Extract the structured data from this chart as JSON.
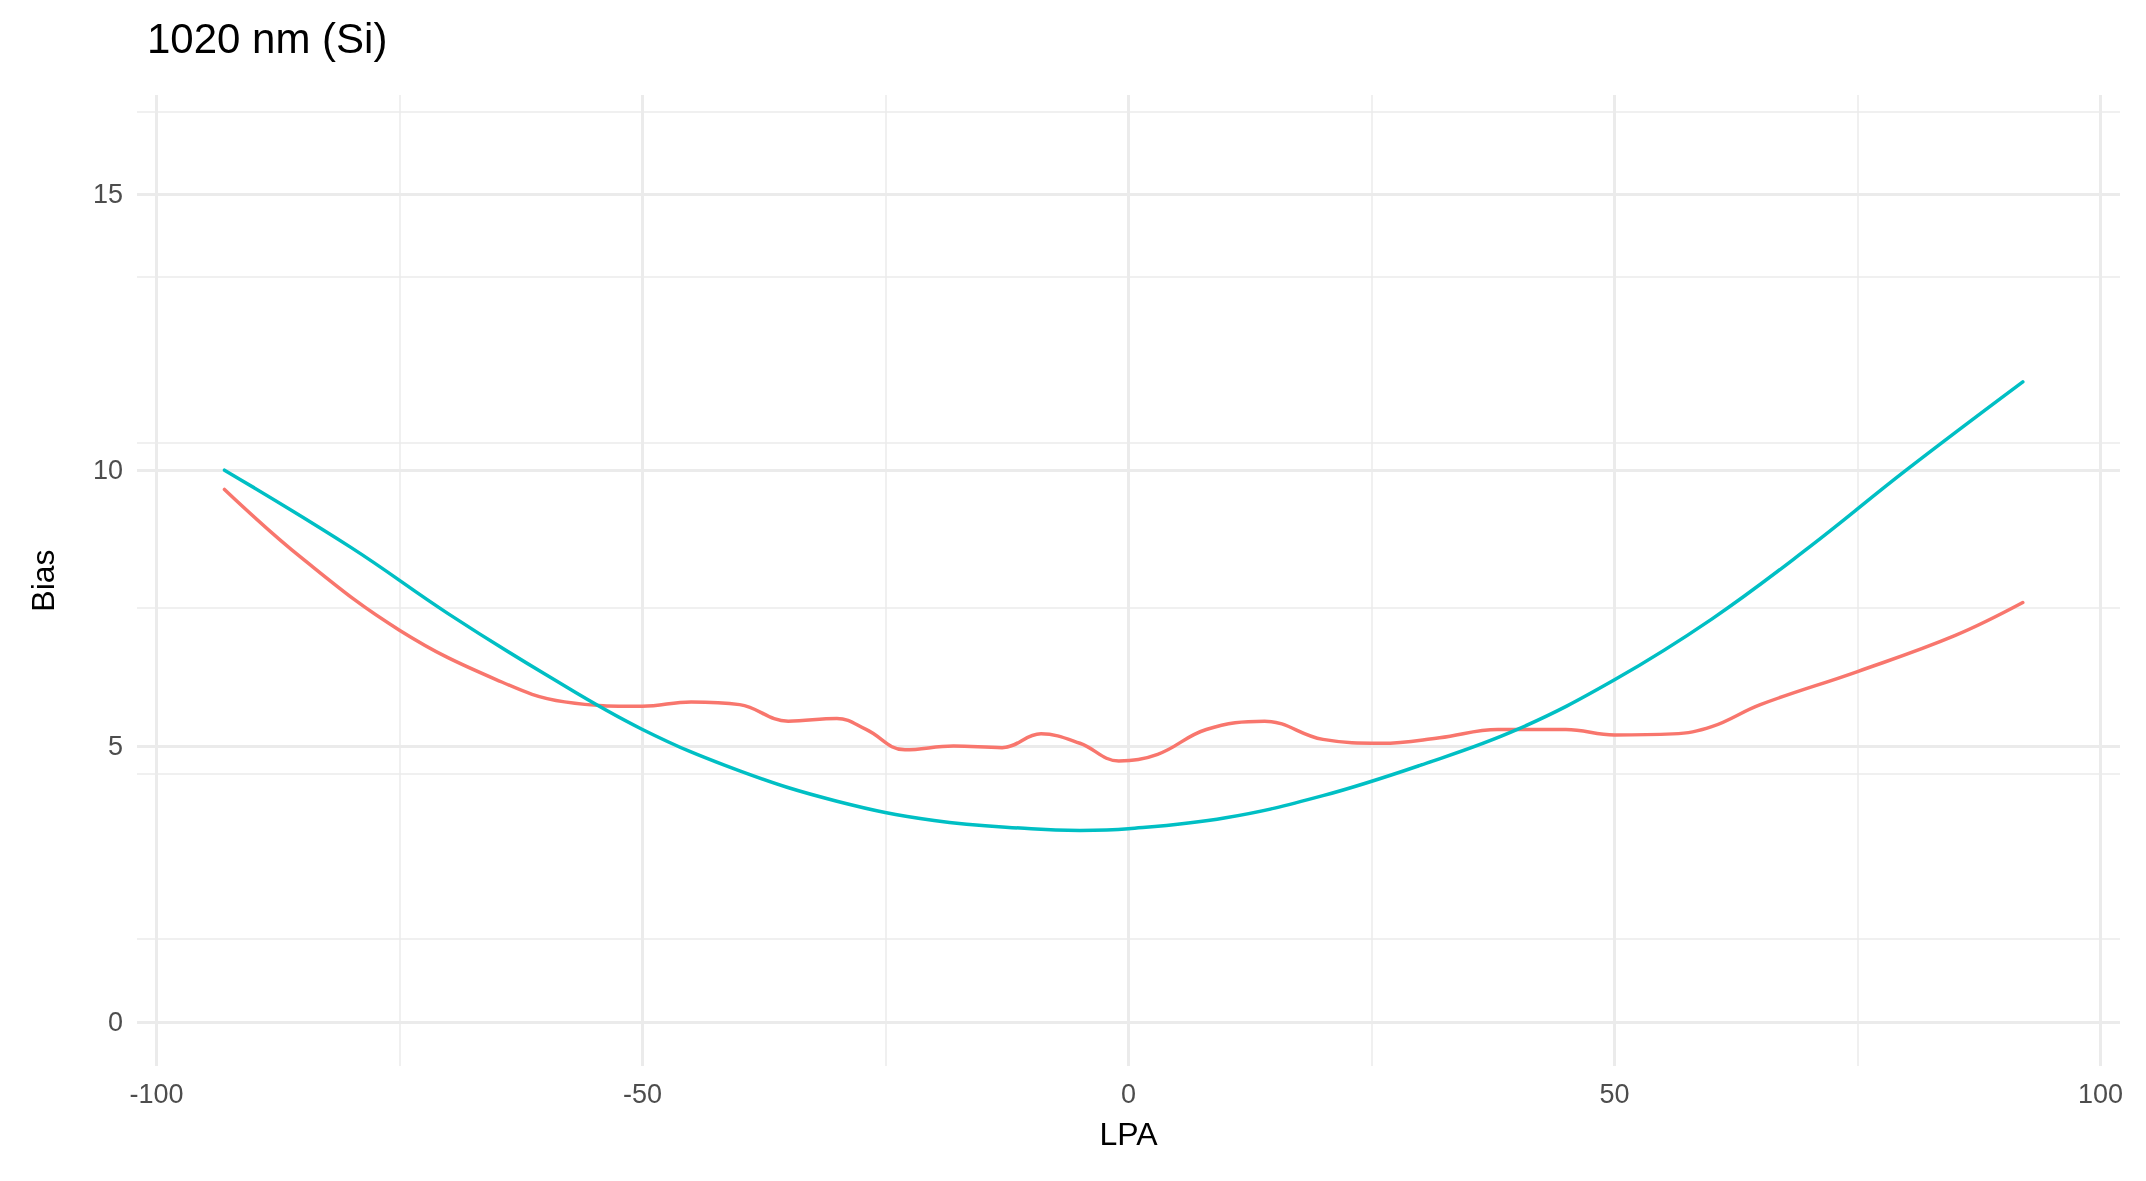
{
  "chart_data": {
    "type": "line",
    "title": "1020 nm (Si)",
    "xlabel": "LPA",
    "ylabel": "Bias",
    "xlim": [
      -102,
      102
    ],
    "xticks": [
      -100,
      -50,
      0,
      50,
      100
    ],
    "ylim": [
      -0.8,
      16.8
    ],
    "yticks": [
      0,
      5,
      10,
      15
    ],
    "grid": true,
    "marker": "none",
    "line_style": "solid",
    "series": [
      {
        "color": "#f8766d",
        "x": [
          -93,
          -85,
          -75,
          -65,
          -58,
          -50,
          -45,
          -40,
          -35,
          -30,
          -27,
          -23,
          -18,
          -13,
          -9,
          -5,
          -1,
          3,
          8,
          14,
          20,
          26,
          32,
          38,
          45,
          50,
          56,
          60,
          65,
          75,
          85,
          92
        ],
        "values": [
          9.65,
          8.4,
          7.1,
          6.2,
          5.8,
          5.72,
          5.8,
          5.75,
          5.45,
          5.5,
          5.3,
          4.93,
          5.0,
          4.97,
          5.22,
          5.05,
          4.73,
          4.85,
          5.3,
          5.45,
          5.12,
          5.05,
          5.15,
          5.3,
          5.3,
          5.2,
          5.22,
          5.35,
          5.75,
          6.35,
          7.0,
          7.6
        ]
      },
      {
        "color": "#00bfc4",
        "x": [
          -93,
          -80,
          -70,
          -60,
          -50,
          -40,
          -30,
          -20,
          -10,
          -5,
          0,
          10,
          20,
          30,
          40,
          50,
          60,
          70,
          80,
          92
        ],
        "values": [
          10.0,
          8.6,
          7.4,
          6.3,
          5.3,
          4.55,
          4.0,
          3.65,
          3.5,
          3.47,
          3.5,
          3.7,
          4.1,
          4.65,
          5.3,
          6.2,
          7.3,
          8.6,
          10.0,
          11.6
        ]
      }
    ]
  }
}
